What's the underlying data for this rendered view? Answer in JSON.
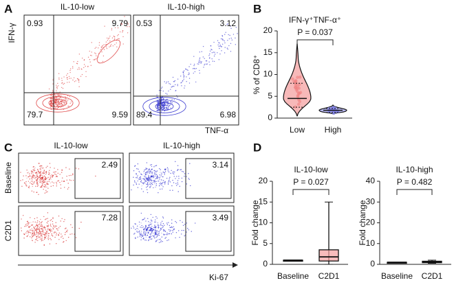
{
  "panels": {
    "A": {
      "letter": "A",
      "ylabel": "IFN-γ",
      "xlabel": "TNF-α",
      "plots": [
        {
          "title": "IL-10-low",
          "color": "#e04848",
          "quadrants": [
            0.93,
            9.79,
            79.7,
            9.59
          ]
        },
        {
          "title": "IL-10-high",
          "color": "#3a3ad0",
          "quadrants": [
            0.53,
            3.12,
            89.4,
            6.98
          ]
        }
      ]
    },
    "B": {
      "letter": "B",
      "chart_data": {
        "type": "violin",
        "title": "IFN-γ⁺TNF-α⁺",
        "ylabel": "% of CD8⁺",
        "categories": [
          "Low",
          "High"
        ],
        "colors": [
          "#f08080",
          "#8080e8"
        ],
        "min": [
          0.5,
          1
        ],
        "q1": [
          2.5,
          1.3
        ],
        "median": [
          4.5,
          1.8
        ],
        "q3": [
          8,
          2.2
        ],
        "max": [
          17,
          3
        ],
        "ylim": [
          0,
          20
        ],
        "yticks": [
          0,
          5,
          10,
          15,
          20
        ],
        "annotation": "P = 0.037"
      }
    },
    "C": {
      "letter": "C",
      "columns": [
        "IL-10-low",
        "IL-10-high"
      ],
      "rows": [
        "Baseline",
        "C2D1"
      ],
      "colors": [
        "#d83030",
        "#3030d0"
      ],
      "values": [
        [
          2.49,
          3.14
        ],
        [
          7.28,
          3.49
        ]
      ],
      "xlabel": "Ki-67"
    },
    "D": {
      "letter": "D",
      "charts": [
        {
          "type": "box",
          "title": "IL-10-low",
          "ylabel": "Fold change",
          "categories": [
            "Baseline",
            "C2D1"
          ],
          "colors": [
            "#e04848",
            "#f6a0a0"
          ],
          "min": [
            1,
            0
          ],
          "q1": [
            1,
            0.8
          ],
          "median": [
            1,
            1.8
          ],
          "q3": [
            1,
            3.5
          ],
          "max": [
            1,
            15
          ],
          "ylim": [
            0,
            20
          ],
          "yticks": [
            0,
            5,
            10,
            15,
            20
          ],
          "annotation": "P = 0.027"
        },
        {
          "type": "box",
          "title": "IL-10-high",
          "ylabel": "Fold change",
          "categories": [
            "Baseline",
            "C2D1"
          ],
          "colors": [
            "#3a3ad0",
            "#a0a0f0"
          ],
          "min": [
            1,
            0.5
          ],
          "q1": [
            1,
            0.8
          ],
          "median": [
            1,
            1.2
          ],
          "q3": [
            1,
            1.5
          ],
          "max": [
            1,
            2
          ],
          "ylim": [
            0,
            40
          ],
          "yticks": [
            0,
            10,
            20,
            30,
            40
          ],
          "annotation": "P = 0.482"
        }
      ]
    }
  }
}
